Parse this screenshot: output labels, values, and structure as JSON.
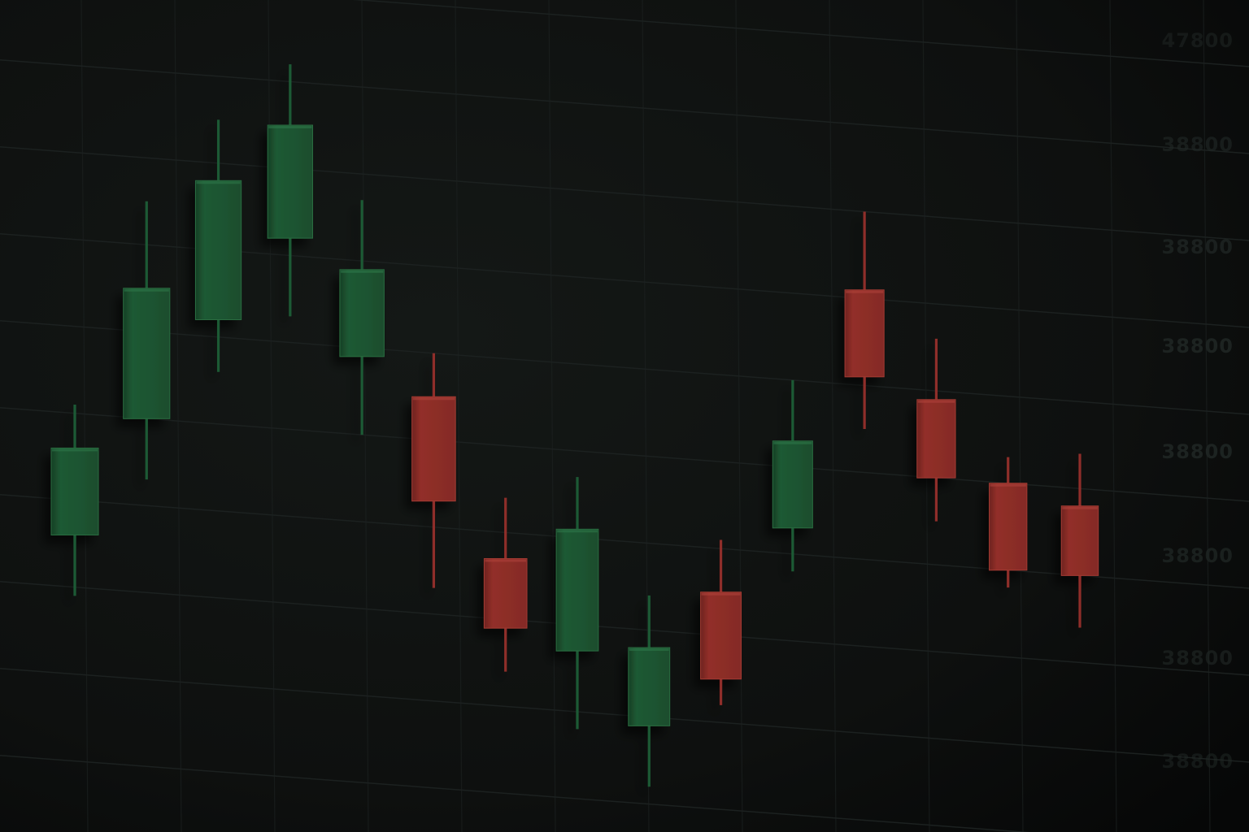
{
  "chart_data": {
    "type": "candlestick",
    "title": "",
    "xlabel": "",
    "ylabel": "",
    "grid": true,
    "legend": "none",
    "colors": {
      "up": "#1f5a34",
      "down": "#8f2f29",
      "background": "#0d0f0e",
      "grid": "#1c2120"
    },
    "y_tick_labels": [
      "47800",
      "38800",
      "38800",
      "38800",
      "38800",
      "38800",
      "38800",
      "38800"
    ],
    "candles": [
      {
        "dir": "up",
        "open": 31,
        "close": 41,
        "high": 46,
        "low": 24
      },
      {
        "dir": "up",
        "open": 45,
        "close": 60,
        "high": 70,
        "low": 38
      },
      {
        "dir": "up",
        "open": 57,
        "close": 73,
        "high": 80,
        "low": 51
      },
      {
        "dir": "up",
        "open": 67,
        "close": 80,
        "high": 87,
        "low": 58
      },
      {
        "dir": "up",
        "open": 54,
        "close": 64,
        "high": 72,
        "low": 45
      },
      {
        "dir": "down",
        "open": 50,
        "close": 38,
        "high": 55,
        "low": 28
      },
      {
        "dir": "down",
        "open": 32,
        "close": 24,
        "high": 39,
        "low": 19
      },
      {
        "dir": "up",
        "open": 22,
        "close": 36,
        "high": 42,
        "low": 13
      },
      {
        "dir": "up",
        "open": 14,
        "close": 23,
        "high": 29,
        "low": 7
      },
      {
        "dir": "down",
        "open": 30,
        "close": 20,
        "high": 36,
        "low": 17
      },
      {
        "dir": "up",
        "open": 38,
        "close": 48,
        "high": 55,
        "low": 33
      },
      {
        "dir": "down",
        "open": 66,
        "close": 56,
        "high": 75,
        "low": 50
      },
      {
        "dir": "down",
        "open": 54,
        "close": 45,
        "high": 61,
        "low": 40
      },
      {
        "dir": "down",
        "open": 45,
        "close": 35,
        "high": 48,
        "low": 33
      },
      {
        "dir": "down",
        "open": 43,
        "close": 35,
        "high": 49,
        "low": 29
      }
    ]
  }
}
